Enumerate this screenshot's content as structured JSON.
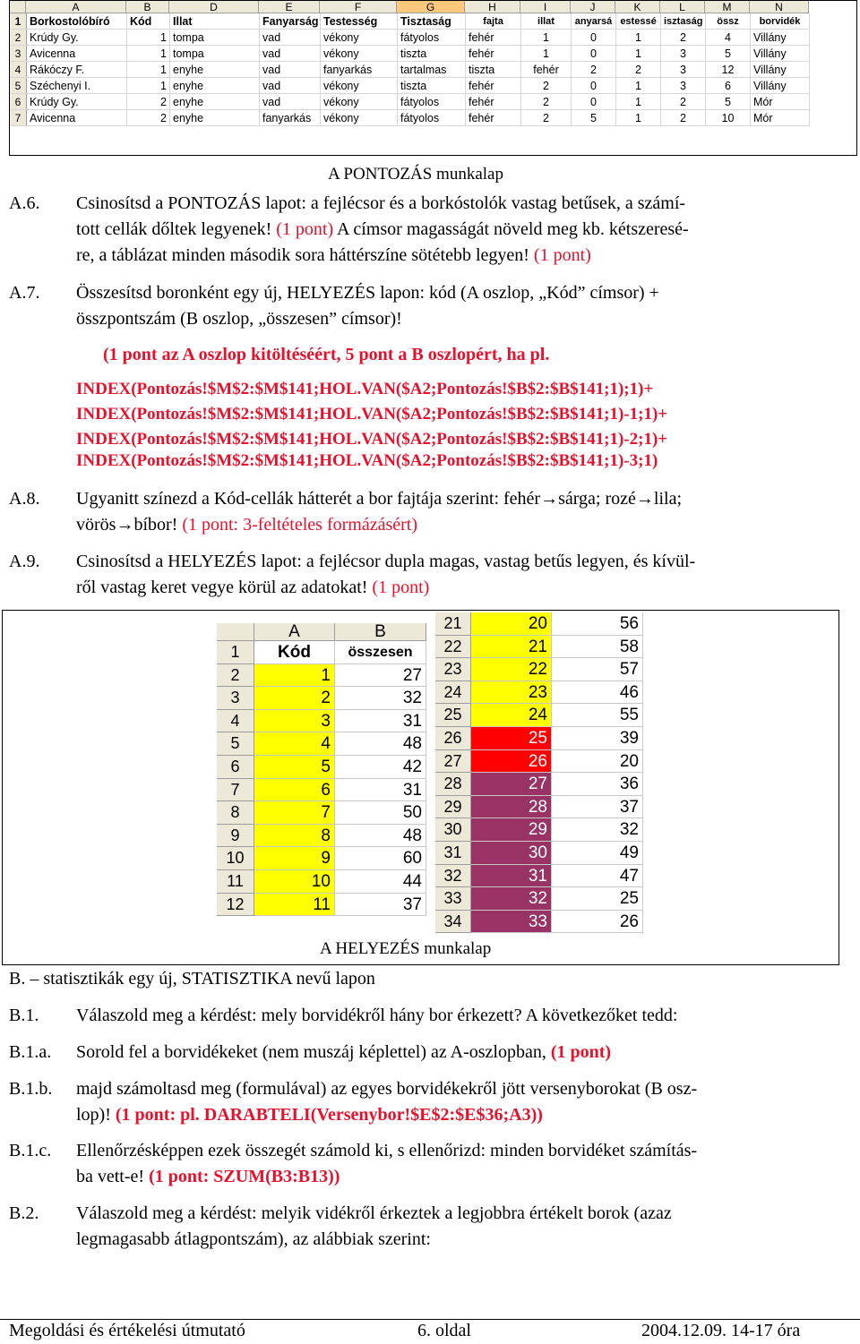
{
  "sheet1": {
    "col_letters": [
      "A",
      "B",
      "D",
      "E",
      "F",
      "G",
      "H",
      "I",
      "J",
      "K",
      "L",
      "M",
      "N"
    ],
    "headers": [
      "Borkostolóbíró",
      "Kód",
      "Illat",
      "Fanyarság",
      "Testesség",
      "Tisztaság",
      "fajta",
      "illat",
      "anyarsá",
      "estessé",
      "isztaság",
      "össz",
      "borvidék"
    ],
    "rows": [
      [
        "2",
        "Krúdy Gy.",
        "1",
        "tompa",
        "vad",
        "vékony",
        "fátyolos",
        "fehér",
        "1",
        "0",
        "1",
        "2",
        "4",
        "Villány"
      ],
      [
        "3",
        "Avicenna",
        "1",
        "tompa",
        "vad",
        "vékony",
        "tiszta",
        "fehér",
        "1",
        "0",
        "1",
        "3",
        "5",
        "Villány"
      ],
      [
        "4",
        "Rákóczy F.",
        "1",
        "enyhe",
        "vad",
        "fanyarkás",
        "tartalmas",
        "tiszta",
        "fehér",
        "2",
        "2",
        "3",
        "12",
        "Villány"
      ],
      [
        "5",
        "Széchenyi I.",
        "1",
        "enyhe",
        "vad",
        "vékony",
        "tiszta",
        "fehér",
        "2",
        "0",
        "1",
        "3",
        "6",
        "Villány"
      ],
      [
        "6",
        "Krúdy Gy.",
        "2",
        "enyhe",
        "vad",
        "vékony",
        "fátyolos",
        "fehér",
        "2",
        "0",
        "1",
        "2",
        "5",
        "Mór"
      ],
      [
        "7",
        "Avicenna",
        "2",
        "enyhe",
        "fanyarkás",
        "vékony",
        "fátyolos",
        "fehér",
        "2",
        "5",
        "1",
        "2",
        "10",
        "Mór"
      ]
    ],
    "caption": "A PONTOZÁS munkalap"
  },
  "a6": {
    "num": "A.6.",
    "t1": "Csinosítsd a PONTOZÁS lapot: a fejlécsor és a borkóstolók vastag betűsek, a számí-",
    "t2a": "tott cellák dőltek legyenek! ",
    "t2b": "(1 pont)",
    "t2c": " A címsor magasságát növeld meg kb. kétszeresé-",
    "t3a": "re, a táblázat minden második sora háttérszíne sötétebb legyen! ",
    "t3b": "(1 pont)"
  },
  "a7": {
    "num": "A.7.",
    "t1": "Összesítsd boronként egy új, HELYEZÉS lapon: kód (A oszlop, „Kód” címsor) +",
    "t2": "összpontszám (B oszlop, „összesen” címsor)!",
    "t3": "(1 pont az A oszlop kitöltéséért, 5 pont a B oszlopért, ha pl.",
    "f1": "INDEX(Pontozás!$M$2:$M$141;HOL.VAN($A2;Pontozás!$B$2:$B$141;1);1)+",
    "f2": "INDEX(Pontozás!$M$2:$M$141;HOL.VAN($A2;Pontozás!$B$2:$B$141;1)-1;1)+",
    "f3": "INDEX(Pontozás!$M$2:$M$141;HOL.VAN($A2;Pontozás!$B$2:$B$141;1)-2;1)+",
    "f4": "INDEX(Pontozás!$M$2:$M$141;HOL.VAN($A2;Pontozás!$B$2:$B$141;1)-3;1)"
  },
  "a8": {
    "num": "A.8.",
    "t1": "Ugyanitt színezd a Kód-cellák hátterét a bor fajtája szerint: fehér→sárga; rozé→lila;",
    "t2a": "vörös→bíbor! ",
    "t2b": "(1 pont: 3-feltételes formázásért)"
  },
  "a9": {
    "num": "A.9.",
    "t1": "Csinosítsd a HELYEZÉS lapot: a fejlécsor dupla magas, vastag betűs legyen, és kívül-",
    "t2a": "ről vastag keret vegye körül az adatokat! ",
    "t2b": "(1 pont)"
  },
  "sheet2": {
    "colA": "A",
    "colB": "B",
    "hdrA": "Kód",
    "hdrB": "összesen",
    "left_rows": [
      [
        "1",
        "",
        ""
      ],
      [
        "2",
        "1",
        "27"
      ],
      [
        "3",
        "2",
        "32"
      ],
      [
        "4",
        "3",
        "31"
      ],
      [
        "5",
        "4",
        "48"
      ],
      [
        "6",
        "5",
        "42"
      ],
      [
        "7",
        "6",
        "31"
      ],
      [
        "8",
        "7",
        "50"
      ],
      [
        "9",
        "8",
        "48"
      ],
      [
        "10",
        "9",
        "60"
      ],
      [
        "11",
        "10",
        "44"
      ],
      [
        "12",
        "11",
        "37"
      ]
    ],
    "right_rows": [
      [
        "21",
        "20",
        "56"
      ],
      [
        "22",
        "21",
        "58"
      ],
      [
        "23",
        "22",
        "57"
      ],
      [
        "24",
        "23",
        "46"
      ],
      [
        "25",
        "24",
        "55"
      ],
      [
        "26",
        "25",
        "39"
      ],
      [
        "27",
        "26",
        "20"
      ],
      [
        "28",
        "27",
        "36"
      ],
      [
        "29",
        "28",
        "37"
      ],
      [
        "30",
        "29",
        "32"
      ],
      [
        "31",
        "30",
        "49"
      ],
      [
        "32",
        "31",
        "47"
      ],
      [
        "33",
        "32",
        "25"
      ],
      [
        "34",
        "33",
        "26"
      ]
    ],
    "caption": "A HELYEZÉS munkalap",
    "colors": {
      "yellow": "#ffff00",
      "red": "#ff0000",
      "purple": "#993366"
    }
  },
  "b": {
    "title": "B. – statisztikák egy új, STATISZTIKA nevű lapon",
    "b1_num": "B.1.",
    "b1": "Válaszold meg a kérdést: mely borvidékről hány bor érkezett? A következőket tedd:",
    "b1a_num": "B.1.a.",
    "b1a_t": "Sorold fel a borvidékeket (nem muszáj képlettel) az A-oszlopban, ",
    "b1a_p": "(1 pont)",
    "b1b_num": "B.1.b.",
    "b1b_t1": "majd számoltasd meg (formulával) az egyes borvidékekről jött versenyborokat (B osz-",
    "b1b_t2": "lop)! ",
    "b1b_p": "(1 pont: pl. DARABTELI(Versenybor!$E$2:$E$36;A3))",
    "b1c_num": "B.1.c.",
    "b1c_t1": "Ellenőrzésképpen ezek összegét számold ki, s ellenőrizd: minden borvidéket számítás-",
    "b1c_t2": "ba vett-e! ",
    "b1c_p": "(1 pont: SZUM(B3:B13))",
    "b2_num": "B.2.",
    "b2_t1": "Válaszold meg a kérdést: melyik vidékről érkeztek a legjobbra értékelt borok (azaz",
    "b2_t2": "legmagasabb átlagpontszám), az alábbiak szerint:"
  },
  "footer": {
    "left": "Megoldási és értékelési útmutató",
    "center": "6. oldal",
    "right": "2004.12.09. 14-17 óra"
  }
}
